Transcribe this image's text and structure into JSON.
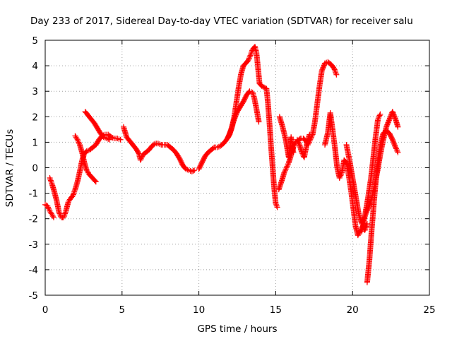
{
  "chart_data": {
    "type": "scatter",
    "title": "Day 233 of 2017, Sidereal Day-to-day VTEC variation (SDTVAR) for receiver salu",
    "xlabel": "GPS time / hours",
    "ylabel": "SDTVAR / TECUs",
    "xlim": [
      0,
      25
    ],
    "ylim": [
      -5,
      5
    ],
    "x_ticks": [
      "0",
      "5",
      "10",
      "15",
      "20",
      "25"
    ],
    "y_ticks": [
      "5",
      "4",
      "3",
      "2",
      "1",
      "0",
      "-1",
      "-2",
      "-3",
      "-4",
      "-5"
    ],
    "grid": true,
    "marker": "+",
    "color": "#ff0000",
    "series": [
      {
        "name": "",
        "segments": [
          [
            [
              0.0,
              -1.45
            ],
            [
              0.15,
              -1.5
            ],
            [
              0.3,
              -1.7
            ],
            [
              0.45,
              -1.85
            ],
            [
              0.55,
              -1.95
            ]
          ],
          [
            [
              0.3,
              -0.4
            ],
            [
              0.45,
              -0.65
            ],
            [
              0.6,
              -0.95
            ],
            [
              0.75,
              -1.3
            ],
            [
              0.9,
              -1.75
            ],
            [
              1.05,
              -1.95
            ],
            [
              1.2,
              -1.95
            ],
            [
              1.35,
              -1.7
            ],
            [
              1.5,
              -1.35
            ],
            [
              1.65,
              -1.2
            ],
            [
              1.8,
              -1.1
            ],
            [
              1.95,
              -0.85
            ],
            [
              2.1,
              -0.55
            ],
            [
              2.25,
              -0.15
            ],
            [
              2.4,
              0.3
            ],
            [
              2.55,
              0.55
            ],
            [
              2.7,
              0.65
            ],
            [
              2.9,
              0.7
            ],
            [
              3.1,
              0.8
            ],
            [
              3.3,
              0.9
            ],
            [
              3.5,
              1.1
            ],
            [
              3.7,
              1.25
            ],
            [
              3.9,
              1.3
            ],
            [
              4.1,
              1.3
            ],
            [
              4.3,
              1.2
            ],
            [
              4.5,
              1.15
            ],
            [
              4.7,
              1.15
            ],
            [
              4.9,
              1.1
            ]
          ],
          [
            [
              1.95,
              1.25
            ],
            [
              2.1,
              1.1
            ],
            [
              2.25,
              0.9
            ],
            [
              2.4,
              0.6
            ],
            [
              2.55,
              0.2
            ],
            [
              2.7,
              -0.1
            ],
            [
              2.85,
              -0.25
            ],
            [
              3.0,
              -0.35
            ],
            [
              3.15,
              -0.45
            ],
            [
              3.3,
              -0.55
            ]
          ],
          [
            [
              2.6,
              2.2
            ],
            [
              2.8,
              2.05
            ],
            [
              3.0,
              1.9
            ],
            [
              3.2,
              1.75
            ],
            [
              3.4,
              1.55
            ],
            [
              3.6,
              1.35
            ],
            [
              3.8,
              1.2
            ],
            [
              4.0,
              1.15
            ],
            [
              4.2,
              1.1
            ]
          ],
          [
            [
              5.1,
              1.6
            ],
            [
              5.3,
              1.2
            ],
            [
              5.5,
              1.05
            ],
            [
              5.7,
              0.9
            ],
            [
              5.9,
              0.75
            ],
            [
              6.1,
              0.55
            ],
            [
              6.2,
              0.3
            ],
            [
              6.35,
              0.5
            ],
            [
              6.55,
              0.6
            ],
            [
              6.75,
              0.7
            ],
            [
              6.95,
              0.85
            ],
            [
              7.15,
              0.95
            ],
            [
              7.35,
              0.95
            ],
            [
              7.55,
              0.9
            ],
            [
              7.75,
              0.9
            ],
            [
              7.95,
              0.9
            ],
            [
              8.15,
              0.8
            ],
            [
              8.35,
              0.7
            ],
            [
              8.55,
              0.55
            ],
            [
              8.75,
              0.35
            ],
            [
              8.95,
              0.1
            ],
            [
              9.15,
              -0.05
            ],
            [
              9.35,
              -0.1
            ],
            [
              9.55,
              -0.15
            ],
            [
              9.7,
              -0.1
            ]
          ],
          [
            [
              10.0,
              -0.05
            ],
            [
              10.2,
              0.2
            ],
            [
              10.4,
              0.45
            ],
            [
              10.6,
              0.6
            ],
            [
              10.8,
              0.7
            ],
            [
              11.0,
              0.8
            ],
            [
              11.2,
              0.8
            ],
            [
              11.4,
              0.85
            ],
            [
              11.6,
              0.95
            ],
            [
              11.8,
              1.1
            ],
            [
              12.0,
              1.3
            ],
            [
              12.15,
              1.6
            ],
            [
              12.3,
              2.0
            ],
            [
              12.45,
              2.6
            ],
            [
              12.6,
              3.2
            ],
            [
              12.75,
              3.7
            ],
            [
              12.9,
              4.0
            ],
            [
              13.05,
              4.1
            ],
            [
              13.2,
              4.2
            ],
            [
              13.35,
              4.4
            ],
            [
              13.5,
              4.65
            ],
            [
              13.65,
              4.75
            ],
            [
              13.75,
              4.5
            ],
            [
              13.85,
              3.9
            ],
            [
              13.95,
              3.3
            ],
            [
              14.1,
              3.2
            ],
            [
              14.25,
              3.15
            ],
            [
              14.4,
              3.1
            ],
            [
              14.5,
              2.5
            ],
            [
              14.6,
              1.7
            ],
            [
              14.7,
              0.8
            ],
            [
              14.8,
              0.0
            ],
            [
              14.9,
              -0.8
            ],
            [
              15.0,
              -1.4
            ],
            [
              15.1,
              -1.55
            ]
          ],
          [
            [
              11.9,
              1.2
            ],
            [
              12.1,
              1.5
            ],
            [
              12.3,
              1.9
            ],
            [
              12.5,
              2.2
            ],
            [
              12.7,
              2.4
            ],
            [
              12.9,
              2.6
            ],
            [
              13.1,
              2.85
            ],
            [
              13.3,
              3.0
            ],
            [
              13.5,
              2.95
            ],
            [
              13.6,
              2.75
            ],
            [
              13.75,
              2.3
            ],
            [
              13.9,
              1.8
            ]
          ],
          [
            [
              15.2,
              -0.85
            ],
            [
              15.4,
              -0.5
            ],
            [
              15.55,
              -0.2
            ],
            [
              15.7,
              0.0
            ],
            [
              15.85,
              0.2
            ],
            [
              16.0,
              0.5
            ],
            [
              16.15,
              0.8
            ],
            [
              16.3,
              1.0
            ],
            [
              16.45,
              1.05
            ],
            [
              16.6,
              1.15
            ],
            [
              16.8,
              1.15
            ],
            [
              16.95,
              1.05
            ],
            [
              17.1,
              0.9
            ],
            [
              17.25,
              1.1
            ],
            [
              17.4,
              1.3
            ],
            [
              17.55,
              1.8
            ],
            [
              17.7,
              2.5
            ],
            [
              17.85,
              3.2
            ],
            [
              18.0,
              3.8
            ],
            [
              18.2,
              4.1
            ],
            [
              18.4,
              4.15
            ],
            [
              18.6,
              4.05
            ],
            [
              18.8,
              3.9
            ],
            [
              18.95,
              3.65
            ]
          ],
          [
            [
              15.25,
              2.0
            ],
            [
              15.45,
              1.6
            ],
            [
              15.65,
              1.1
            ],
            [
              15.85,
              0.4
            ],
            [
              16.0,
              1.2
            ],
            [
              16.15,
              0.6
            ]
          ],
          [
            [
              16.4,
              1.1
            ],
            [
              16.55,
              0.9
            ],
            [
              16.7,
              0.6
            ],
            [
              16.85,
              0.4
            ],
            [
              17.05,
              1.0
            ],
            [
              17.2,
              1.3
            ]
          ],
          [
            [
              18.2,
              0.9
            ],
            [
              18.4,
              1.4
            ],
            [
              18.55,
              2.15
            ],
            [
              18.7,
              1.5
            ],
            [
              18.85,
              0.8
            ],
            [
              19.0,
              0.0
            ],
            [
              19.15,
              -0.4
            ],
            [
              19.3,
              -0.2
            ],
            [
              19.45,
              0.3
            ],
            [
              19.6,
              0.2
            ],
            [
              19.75,
              -0.3
            ],
            [
              19.9,
              -0.9
            ],
            [
              20.05,
              -1.6
            ],
            [
              20.2,
              -2.3
            ],
            [
              20.35,
              -2.65
            ],
            [
              20.5,
              -2.5
            ],
            [
              20.65,
              -2.3
            ],
            [
              20.8,
              -2.45
            ],
            [
              20.95,
              -2.2
            ]
          ],
          [
            [
              19.6,
              0.9
            ],
            [
              19.8,
              0.3
            ],
            [
              20.0,
              -0.4
            ],
            [
              20.2,
              -1.1
            ],
            [
              20.4,
              -1.8
            ],
            [
              20.6,
              -2.2
            ],
            [
              20.8,
              -1.9
            ],
            [
              21.0,
              -1.2
            ],
            [
              21.2,
              -0.4
            ],
            [
              21.35,
              0.4
            ],
            [
              21.5,
              1.2
            ],
            [
              21.65,
              1.9
            ],
            [
              21.8,
              2.1
            ]
          ],
          [
            [
              20.95,
              -4.5
            ],
            [
              21.1,
              -3.6
            ],
            [
              21.25,
              -2.4
            ],
            [
              21.4,
              -1.3
            ],
            [
              21.55,
              -0.3
            ],
            [
              21.7,
              0.5
            ],
            [
              21.85,
              1.0
            ],
            [
              22.0,
              1.35
            ],
            [
              22.2,
              1.45
            ],
            [
              22.4,
              1.35
            ],
            [
              22.6,
              1.1
            ],
            [
              22.8,
              0.8
            ],
            [
              22.95,
              0.6
            ]
          ],
          [
            [
              20.6,
              -2.5
            ],
            [
              20.8,
              -1.9
            ],
            [
              21.0,
              -1.6
            ],
            [
              21.2,
              -1.3
            ],
            [
              21.4,
              -0.8
            ],
            [
              21.6,
              -0.2
            ],
            [
              21.8,
              0.5
            ],
            [
              22.0,
              1.1
            ],
            [
              22.2,
              1.6
            ],
            [
              22.4,
              1.9
            ],
            [
              22.6,
              2.2
            ],
            [
              22.8,
              1.9
            ],
            [
              22.95,
              1.6
            ]
          ]
        ]
      }
    ]
  }
}
